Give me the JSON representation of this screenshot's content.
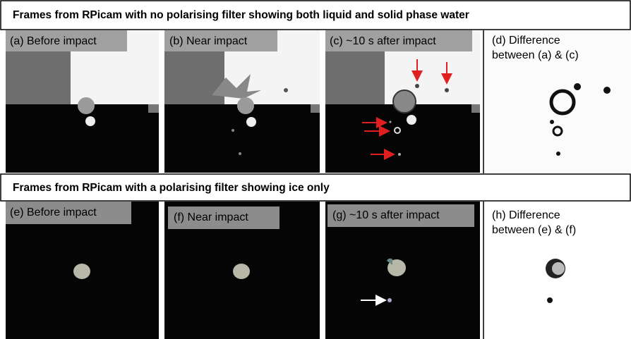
{
  "headers": [
    "Frames from RPicam with no polarising filter showing both liquid and solid phase water",
    "Frames from RPicam with a polarising filter showing ice only"
  ],
  "panels": [
    {
      "lines": [
        "(a) Before impact"
      ]
    },
    {
      "lines": [
        "(b) Near impact"
      ]
    },
    {
      "lines": [
        "(c) ~10 s after impact"
      ]
    },
    {
      "lines": [
        "(d) Difference",
        "between (a) & (c)"
      ]
    },
    {
      "lines": [
        "(e) Before impact"
      ]
    },
    {
      "lines": [
        "(f) Near impact"
      ]
    },
    {
      "lines": [
        "(g) ~10 s after impact"
      ]
    },
    {
      "lines": [
        "(h) Difference",
        "between (e) & (f)"
      ]
    }
  ]
}
